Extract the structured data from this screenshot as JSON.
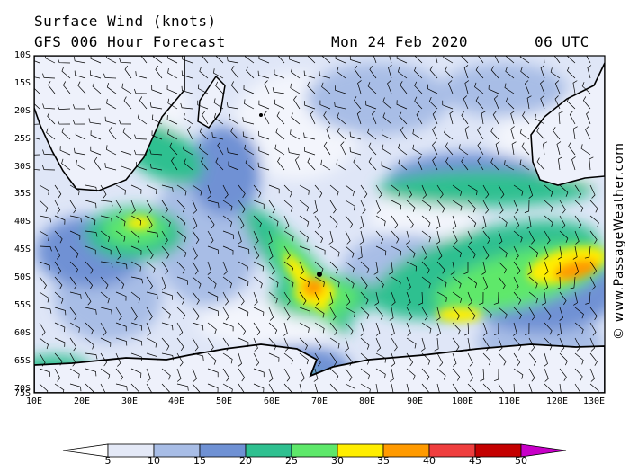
{
  "header": {
    "title": "Surface Wind (knots)",
    "subtitle": "GFS 006 Hour Forecast",
    "date": "Mon 24 Feb 2020",
    "cycle": "06 UTC"
  },
  "map": {
    "latitude_labels": [
      "10S",
      "15S",
      "20S",
      "25S",
      "30S",
      "35S",
      "40S",
      "45S",
      "50S",
      "55S",
      "60S",
      "65S",
      "70S",
      "75S"
    ],
    "longitude_labels": [
      "10E",
      "20E",
      "30E",
      "40E",
      "50E",
      "60E",
      "70E",
      "80E",
      "90E",
      "100E",
      "110E",
      "120E",
      "130E"
    ],
    "background_color": "#dfe6f7",
    "land_outline_color": "#000000"
  },
  "colorbar": {
    "labels": [
      "5",
      "10",
      "15",
      "20",
      "25",
      "30",
      "35",
      "40",
      "45",
      "50"
    ],
    "colors": [
      "#ffffff",
      "#e4e9f7",
      "#a8bde6",
      "#6f91d4",
      "#2fc090",
      "#5ee86a",
      "#ffee00",
      "#ff9a00",
      "#ef3e3e",
      "#c40000",
      "#c800c8"
    ]
  },
  "copyright": "© www.PassageWeather.com"
}
